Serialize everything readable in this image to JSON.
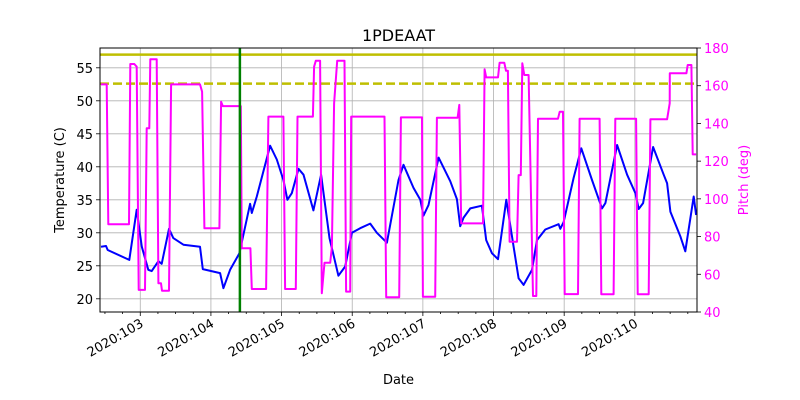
{
  "chart_data": {
    "type": "line",
    "title": "1PDEAAT",
    "xlabel": "Date",
    "ylabel": "Temperature (C)",
    "ylabel_right": "Pitch (deg)",
    "xlim": [
      102.43,
      110.88
    ],
    "ylim": [
      18.0,
      58.0
    ],
    "ylim_right": [
      40,
      180
    ],
    "grid": true,
    "x_ticks": [
      {
        "value": 103,
        "label": "2020:103"
      },
      {
        "value": 104,
        "label": "2020:104"
      },
      {
        "value": 105,
        "label": "2020:105"
      },
      {
        "value": 106,
        "label": "2020:106"
      },
      {
        "value": 107,
        "label": "2020:107"
      },
      {
        "value": 108,
        "label": "2020:108"
      },
      {
        "value": 109,
        "label": "2020:109"
      },
      {
        "value": 110,
        "label": "2020:110"
      }
    ],
    "y_ticks": [
      20,
      25,
      30,
      35,
      40,
      45,
      50,
      55
    ],
    "y_ticks_right": [
      40,
      60,
      80,
      100,
      120,
      140,
      160,
      180
    ],
    "colors": {
      "temperature": "#0000ff",
      "pitch": "#ff00ff",
      "limit": "#bfbf00",
      "marker": "#008000",
      "right_axis": "#ff00ff"
    },
    "limit_lines": [
      {
        "y": 57.0,
        "style": "solid"
      },
      {
        "y": 52.6,
        "style": "dashed"
      }
    ],
    "vertical_marker": {
      "x": 104.41
    },
    "series": [
      {
        "axis": "left",
        "color": "#0000ff",
        "x": [
          102.444,
          102.515,
          102.539,
          102.845,
          102.95,
          103.021,
          103.114,
          103.162,
          103.256,
          103.304,
          103.407,
          103.468,
          103.61,
          103.846,
          103.885,
          104.13,
          104.176,
          104.271,
          104.403,
          104.555,
          104.579,
          104.65,
          104.838,
          104.933,
          105.026,
          105.083,
          105.145,
          105.239,
          105.31,
          105.451,
          105.56,
          105.678,
          105.805,
          105.9,
          105.995,
          106.113,
          106.254,
          106.349,
          106.491,
          106.655,
          106.726,
          106.868,
          106.963,
          107.009,
          107.08,
          107.222,
          107.388,
          107.482,
          107.529,
          107.576,
          107.671,
          107.836,
          107.897,
          107.978,
          108.063,
          108.181,
          108.284,
          108.355,
          108.426,
          108.545,
          108.615,
          108.733,
          108.921,
          108.945,
          108.992,
          109.134,
          109.243,
          109.394,
          109.536,
          109.583,
          109.749,
          109.89,
          110.008,
          110.055,
          110.117,
          110.259,
          110.409,
          110.457,
          110.504,
          110.646,
          110.715,
          110.833,
          110.867
        ],
        "y": [
          27.9,
          28.0,
          27.4,
          25.9,
          33.5,
          27.9,
          24.4,
          24.2,
          25.7,
          25.3,
          30.6,
          29.2,
          28.2,
          27.9,
          24.5,
          23.9,
          21.6,
          24.4,
          26.9,
          34.4,
          33.0,
          35.5,
          43.2,
          41.1,
          38.0,
          35.0,
          36.0,
          39.7,
          38.8,
          33.4,
          38.8,
          29.2,
          23.5,
          24.9,
          30.0,
          30.7,
          31.4,
          30.0,
          28.5,
          38.0,
          40.3,
          36.8,
          35.0,
          32.6,
          34.2,
          41.4,
          37.8,
          35.1,
          31.0,
          32.3,
          33.7,
          34.1,
          28.9,
          26.9,
          26.0,
          35.0,
          27.9,
          23.1,
          22.1,
          24.4,
          28.9,
          30.5,
          31.3,
          30.6,
          31.6,
          38.3,
          42.8,
          38.0,
          33.7,
          34.5,
          43.3,
          38.8,
          36.0,
          33.6,
          34.5,
          43.0,
          38.8,
          37.5,
          33.2,
          29.4,
          27.2,
          35.5,
          32.7
        ]
      },
      {
        "axis": "right",
        "color": "#ff00ff",
        "x": [
          102.444,
          102.525,
          102.548,
          102.841,
          102.859,
          102.916,
          102.95,
          102.978,
          103.067,
          103.091,
          103.128,
          103.142,
          103.233,
          103.256,
          103.294,
          103.308,
          103.407,
          103.436,
          103.846,
          103.875,
          103.907,
          104.12,
          104.144,
          104.168,
          104.423,
          104.437,
          104.559,
          104.579,
          104.781,
          104.814,
          105.026,
          105.05,
          105.202,
          105.225,
          105.443,
          105.461,
          105.485,
          105.546,
          105.57,
          105.607,
          105.688,
          105.712,
          105.744,
          105.787,
          105.89,
          105.914,
          105.971,
          105.985,
          106.457,
          106.481,
          106.665,
          106.689,
          106.987,
          107.001,
          107.175,
          107.199,
          107.491,
          107.515,
          107.543,
          107.851,
          107.873,
          107.897,
          108.063,
          108.086,
          108.152,
          108.176,
          108.204,
          108.227,
          108.332,
          108.355,
          108.386,
          108.407,
          108.435,
          108.497,
          108.559,
          108.606,
          108.63,
          108.913,
          108.936,
          108.984,
          109.007,
          109.196,
          109.219,
          109.502,
          109.526,
          109.7,
          109.724,
          110.018,
          110.041,
          110.196,
          110.22,
          110.457,
          110.494,
          110.495,
          110.73,
          110.748,
          110.801,
          110.819,
          110.867
        ],
        "y": [
          160.7,
          160.7,
          86.5,
          86.5,
          171.5,
          171.5,
          170.1,
          51.7,
          51.7,
          137.4,
          137.4,
          174.0,
          174.0,
          55.2,
          55.2,
          51.3,
          51.3,
          160.7,
          160.7,
          156.8,
          84.4,
          84.4,
          151.5,
          149.2,
          149.2,
          73.8,
          73.8,
          52.2,
          52.2,
          143.6,
          143.6,
          52.2,
          52.2,
          143.6,
          143.6,
          170.1,
          173.2,
          173.2,
          49.9,
          66.1,
          66.1,
          74.6,
          150.7,
          173.2,
          173.2,
          50.8,
          50.8,
          143.6,
          143.6,
          47.8,
          47.8,
          143.2,
          143.2,
          48.1,
          48.1,
          143.0,
          143.0,
          149.8,
          87.0,
          87.0,
          168.7,
          164.4,
          164.4,
          172.2,
          172.2,
          167.9,
          167.9,
          77.3,
          77.3,
          112.6,
          112.6,
          171.9,
          165.7,
          165.7,
          48.5,
          48.5,
          142.5,
          142.5,
          146.2,
          146.2,
          49.5,
          49.5,
          142.5,
          142.5,
          49.4,
          49.4,
          142.5,
          142.5,
          49.4,
          49.4,
          142.2,
          142.2,
          150.7,
          166.6,
          166.6,
          171.0,
          171.0,
          123.6,
          123.6
        ]
      }
    ]
  }
}
